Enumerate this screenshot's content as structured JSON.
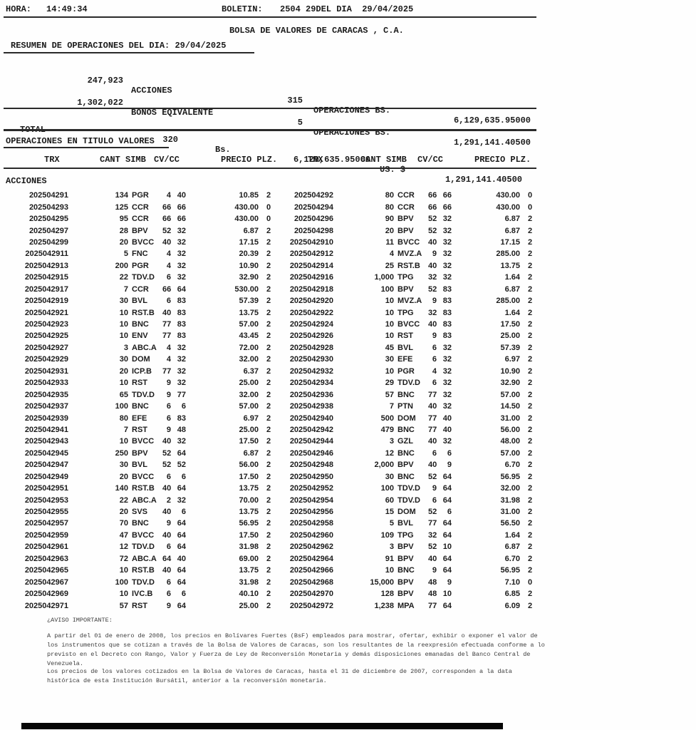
{
  "colors": {
    "ink": "#1a1a1a",
    "scan_bar": "#060606"
  },
  "header": {
    "hora_label": "HORA:",
    "hora_value": "14:49:34",
    "boletin_label": "BOLETIN:",
    "boletin_value": "2504 29DEL DIA  29/04/2025",
    "title": "BOLSA DE VALORES DE CARACAS , C.A.",
    "resumen": "RESUMEN DE OPERACIONES DEL DIA: 29/04/2025"
  },
  "summary": {
    "rows": [
      {
        "qty": "247,923",
        "label": "ACCIONES",
        "ops": "315",
        "ops_label": "OPERACIONES BS.",
        "amount": "6,129,635.95000"
      },
      {
        "qty": "1,302,022",
        "label": "BONOS EQIVALENTE",
        "ops": "5",
        "ops_label": "OPERACIONES BS.",
        "amount": "1,291,141.40500"
      }
    ]
  },
  "total": {
    "label": "TOTAL",
    "count": "320",
    "bs_label": "Bs.",
    "bs_amount": "6,129,635.95000",
    "usd_label": "US. $",
    "usd_amount": "1,291,141.40500"
  },
  "section": {
    "title": "OPERACIONES EN TITULO VALORES",
    "group": "ACCIONES"
  },
  "table": {
    "columns": [
      "TRX",
      "CANT SIMB",
      "CV/CC",
      "PRECIO PLZ.",
      "TRX",
      "CANT SIMB",
      "CV/CC",
      "PRECIO PLZ."
    ],
    "rows": [
      [
        "202504291",
        "134",
        "PGR",
        "4",
        "40",
        "10.85",
        "2",
        "202504292",
        "80",
        "CCR",
        "66",
        "66",
        "430.00",
        "0"
      ],
      [
        "202504293",
        "125",
        "CCR",
        "66",
        "66",
        "430.00",
        "0",
        "202504294",
        "80",
        "CCR",
        "66",
        "66",
        "430.00",
        "0"
      ],
      [
        "202504295",
        "95",
        "CCR",
        "66",
        "66",
        "430.00",
        "0",
        "202504296",
        "90",
        "BPV",
        "52",
        "32",
        "6.87",
        "2"
      ],
      [
        "202504297",
        "28",
        "BPV",
        "52",
        "32",
        "6.87",
        "2",
        "202504298",
        "20",
        "BPV",
        "52",
        "32",
        "6.87",
        "2"
      ],
      [
        "202504299",
        "20",
        "BVCC",
        "40",
        "32",
        "17.15",
        "2",
        "2025042910",
        "11",
        "BVCC",
        "40",
        "32",
        "17.15",
        "2"
      ],
      [
        "2025042911",
        "5",
        "FNC",
        "4",
        "32",
        "20.39",
        "2",
        "2025042912",
        "4",
        "MVZ.A",
        "9",
        "32",
        "285.00",
        "2"
      ],
      [
        "2025042913",
        "200",
        "PGR",
        "4",
        "32",
        "10.90",
        "2",
        "2025042914",
        "25",
        "RST.B",
        "40",
        "32",
        "13.75",
        "2"
      ],
      [
        "2025042915",
        "22",
        "TDV.D",
        "6",
        "32",
        "32.90",
        "2",
        "2025042916",
        "1,000",
        "TPG",
        "32",
        "32",
        "1.64",
        "2"
      ],
      [
        "2025042917",
        "7",
        "CCR",
        "66",
        "64",
        "530.00",
        "2",
        "2025042918",
        "100",
        "BPV",
        "52",
        "83",
        "6.87",
        "2"
      ],
      [
        "2025042919",
        "30",
        "BVL",
        "6",
        "83",
        "57.39",
        "2",
        "2025042920",
        "10",
        "MVZ.A",
        "9",
        "83",
        "285.00",
        "2"
      ],
      [
        "2025042921",
        "10",
        "RST.B",
        "40",
        "83",
        "13.75",
        "2",
        "2025042922",
        "10",
        "TPG",
        "32",
        "83",
        "1.64",
        "2"
      ],
      [
        "2025042923",
        "10",
        "BNC",
        "77",
        "83",
        "57.00",
        "2",
        "2025042924",
        "10",
        "BVCC",
        "40",
        "83",
        "17.50",
        "2"
      ],
      [
        "2025042925",
        "10",
        "ENV",
        "77",
        "83",
        "43.45",
        "2",
        "2025042926",
        "10",
        "RST",
        "9",
        "83",
        "25.00",
        "2"
      ],
      [
        "2025042927",
        "3",
        "ABC.A",
        "4",
        "32",
        "72.00",
        "2",
        "2025042928",
        "45",
        "BVL",
        "6",
        "32",
        "57.39",
        "2"
      ],
      [
        "2025042929",
        "30",
        "DOM",
        "4",
        "32",
        "32.00",
        "2",
        "2025042930",
        "30",
        "EFE",
        "6",
        "32",
        "6.97",
        "2"
      ],
      [
        "2025042931",
        "20",
        "ICP.B",
        "77",
        "32",
        "6.37",
        "2",
        "2025042932",
        "10",
        "PGR",
        "4",
        "32",
        "10.90",
        "2"
      ],
      [
        "2025042933",
        "10",
        "RST",
        "9",
        "32",
        "25.00",
        "2",
        "2025042934",
        "29",
        "TDV.D",
        "6",
        "32",
        "32.90",
        "2"
      ],
      [
        "2025042935",
        "65",
        "TDV.D",
        "9",
        "77",
        "32.00",
        "2",
        "2025042936",
        "57",
        "BNC",
        "77",
        "32",
        "57.00",
        "2"
      ],
      [
        "2025042937",
        "100",
        "BNC",
        "6",
        "6",
        "57.00",
        "2",
        "2025042938",
        "7",
        "PTN",
        "40",
        "32",
        "14.50",
        "2"
      ],
      [
        "2025042939",
        "80",
        "EFE",
        "6",
        "83",
        "6.97",
        "2",
        "2025042940",
        "500",
        "DOM",
        "77",
        "40",
        "31.00",
        "2"
      ],
      [
        "2025042941",
        "7",
        "RST",
        "9",
        "48",
        "25.00",
        "2",
        "2025042942",
        "479",
        "BNC",
        "77",
        "40",
        "56.00",
        "2"
      ],
      [
        "2025042943",
        "10",
        "BVCC",
        "40",
        "32",
        "17.50",
        "2",
        "2025042944",
        "3",
        "GZL",
        "40",
        "32",
        "48.00",
        "2"
      ],
      [
        "2025042945",
        "250",
        "BPV",
        "52",
        "64",
        "6.87",
        "2",
        "2025042946",
        "12",
        "BNC",
        "6",
        "6",
        "57.00",
        "2"
      ],
      [
        "2025042947",
        "30",
        "BVL",
        "52",
        "52",
        "56.00",
        "2",
        "2025042948",
        "2,000",
        "BPV",
        "40",
        "9",
        "6.70",
        "2"
      ],
      [
        "2025042949",
        "20",
        "BVCC",
        "6",
        "6",
        "17.50",
        "2",
        "2025042950",
        "30",
        "BNC",
        "52",
        "64",
        "56.95",
        "2"
      ],
      [
        "2025042951",
        "140",
        "RST.B",
        "40",
        "64",
        "13.75",
        "2",
        "2025042952",
        "100",
        "TDV.D",
        "9",
        "64",
        "32.00",
        "2"
      ],
      [
        "2025042953",
        "22",
        "ABC.A",
        "2",
        "32",
        "70.00",
        "2",
        "2025042954",
        "60",
        "TDV.D",
        "6",
        "64",
        "31.98",
        "2"
      ],
      [
        "2025042955",
        "20",
        "SVS",
        "40",
        "6",
        "13.75",
        "2",
        "2025042956",
        "15",
        "DOM",
        "52",
        "6",
        "31.00",
        "2"
      ],
      [
        "2025042957",
        "70",
        "BNC",
        "9",
        "64",
        "56.95",
        "2",
        "2025042958",
        "5",
        "BVL",
        "77",
        "64",
        "56.50",
        "2"
      ],
      [
        "2025042959",
        "47",
        "BVCC",
        "40",
        "64",
        "17.50",
        "2",
        "2025042960",
        "109",
        "TPG",
        "32",
        "64",
        "1.64",
        "2"
      ],
      [
        "2025042961",
        "12",
        "TDV.D",
        "6",
        "64",
        "31.98",
        "2",
        "2025042962",
        "3",
        "BPV",
        "52",
        "10",
        "6.87",
        "2"
      ],
      [
        "2025042963",
        "72",
        "ABC.A",
        "64",
        "40",
        "69.00",
        "2",
        "2025042964",
        "91",
        "BPV",
        "40",
        "64",
        "6.70",
        "2"
      ],
      [
        "2025042965",
        "10",
        "RST.B",
        "40",
        "64",
        "13.75",
        "2",
        "2025042966",
        "10",
        "BNC",
        "9",
        "64",
        "56.95",
        "2"
      ],
      [
        "2025042967",
        "100",
        "TDV.D",
        "6",
        "64",
        "31.98",
        "2",
        "2025042968",
        "15,000",
        "BPV",
        "48",
        "9",
        "7.10",
        "0"
      ],
      [
        "2025042969",
        "10",
        "IVC.B",
        "6",
        "6",
        "40.10",
        "2",
        "2025042970",
        "128",
        "BPV",
        "48",
        "10",
        "6.85",
        "2"
      ],
      [
        "2025042971",
        "57",
        "RST",
        "9",
        "64",
        "25.00",
        "2",
        "2025042972",
        "1,238",
        "MPA",
        "77",
        "64",
        "6.09",
        "2"
      ]
    ]
  },
  "footer": {
    "aviso": "¿AVISO IMPORTANTE:",
    "para1_lines": [
      "A partir del 01 de enero de 2008, los precios en Bolívares Fuertes (BsF) empleados para mostrar, ofertar, exhibir o exponer el valor de",
      "los instrumentos que se cotizan a través de la Bolsa de Valores de Caracas, son los resultantes de la reexpresión efectuada conforme a lo",
      "previsto en el Decreto con Rango, Valor y Fuerza de Ley de Reconversión Monetaria y demás disposiciones emanadas del Banco Central de",
      "Venezuela."
    ],
    "para2_lines": [
      "Los precios de los valores cotizados en la Bolsa de Valores de Caracas, hasta el 31 de diciembre de 2007, corresponden a la data",
      "histórica de esta Institución Bursátil, anterior a la reconversión monetaria."
    ]
  }
}
